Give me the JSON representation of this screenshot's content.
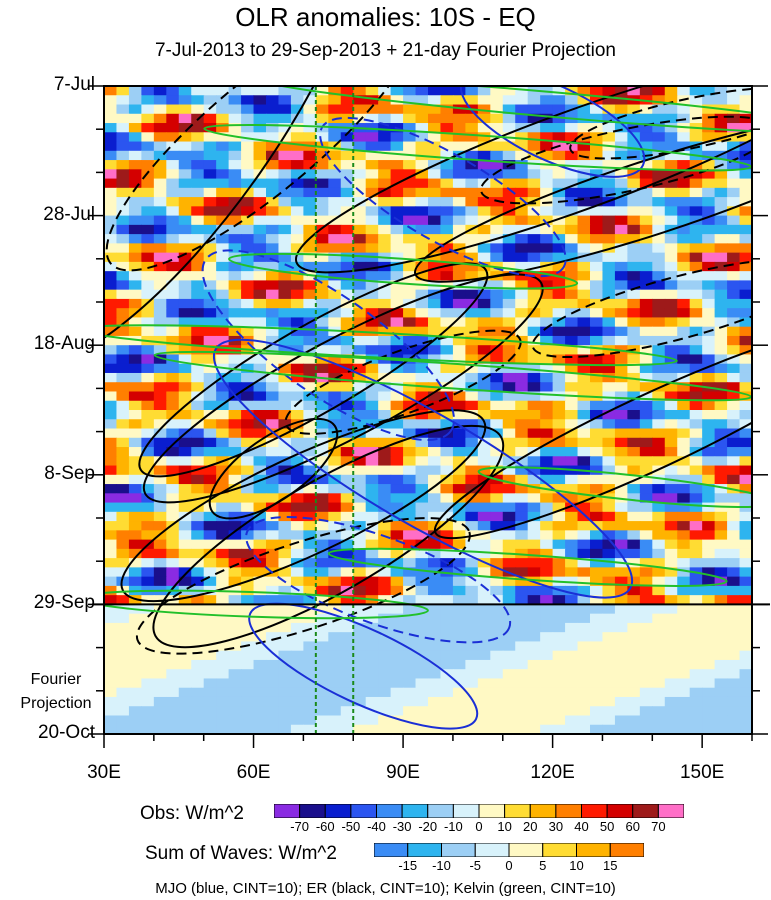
{
  "chart_data": {
    "type": "heatmap",
    "title": "OLR anomalies: 10S - EQ",
    "subtitle": "7-Jul-2013 to 29-Sep-2013 + 21-day Fourier Projection",
    "x_ticks": [
      "30E",
      "60E",
      "90E",
      "120E",
      "150E"
    ],
    "x_tick_values": [
      30,
      60,
      90,
      120,
      150
    ],
    "xlim": [
      30,
      160
    ],
    "y_ticks": [
      "7-Jul",
      "28-Jul",
      "18-Aug",
      "8-Sep",
      "29-Sep",
      "20-Oct"
    ],
    "y_tick_days": [
      0,
      21,
      42,
      63,
      84,
      105
    ],
    "ylim_days": [
      0,
      105
    ],
    "projection_start_day": 84,
    "projection_label_line1": "Fourier",
    "projection_label_line2": "Projection",
    "reference_longitudes": [
      72.5,
      80
    ],
    "obs_colorbar": {
      "label": "Obs: W/m^2",
      "levels": [
        "-70",
        "-60",
        "-50",
        "-40",
        "-30",
        "-20",
        "-10",
        "0",
        "10",
        "20",
        "30",
        "40",
        "50",
        "60",
        "70"
      ],
      "colors": [
        "#8a2be2",
        "#1a0f8c",
        "#0a1ecf",
        "#2b55f0",
        "#3a8cf5",
        "#2eb4ef",
        "#9ccff5",
        "#d8f2fb",
        "#fff9c4",
        "#ffdc33",
        "#ffb300",
        "#ff7f00",
        "#ff1a00",
        "#d40000",
        "#9e1a1a",
        "#ff6ec7"
      ]
    },
    "waves_colorbar": {
      "label": "Sum of Waves: W/m^2",
      "levels": [
        "-15",
        "-10",
        "-5",
        "0",
        "5",
        "10",
        "15"
      ],
      "colors": [
        "#3a8cf5",
        "#2eb4ef",
        "#9ccff5",
        "#d8f2fb",
        "#fff9c4",
        "#ffdc33",
        "#ffb300",
        "#ff7f00"
      ]
    },
    "wave_contours": [
      {
        "name": "MJO",
        "color": "#1a2fd6",
        "cint": 10
      },
      {
        "name": "ER",
        "color": "#000000",
        "cint": 10
      },
      {
        "name": "Kelvin",
        "color": "#22c02a",
        "cint": 10
      }
    ],
    "footer": "MJO (blue, CINT=10); ER (black, CINT=10); Kelvin (green, CINT=10)"
  }
}
